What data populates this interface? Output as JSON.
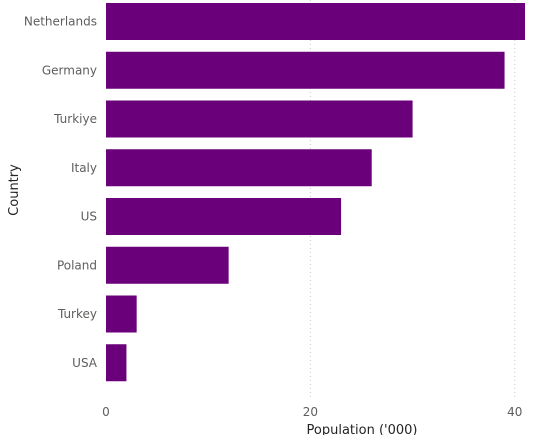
{
  "chart_data": {
    "type": "bar",
    "orientation": "horizontal",
    "categories": [
      "Netherlands",
      "Germany",
      "Turkiye",
      "Italy",
      "US",
      "Poland",
      "Turkey",
      "USA"
    ],
    "values": [
      41,
      39,
      30,
      26,
      23,
      12,
      3,
      2
    ],
    "xlabel": "Population ('000)",
    "ylabel": "Country",
    "xlim": [
      0,
      41
    ],
    "xticks": [
      "0",
      "20",
      "40"
    ],
    "xtick_values": [
      0,
      20,
      40
    ],
    "grid": "vertical",
    "bar_color": "#6a007a",
    "legend": "none"
  }
}
